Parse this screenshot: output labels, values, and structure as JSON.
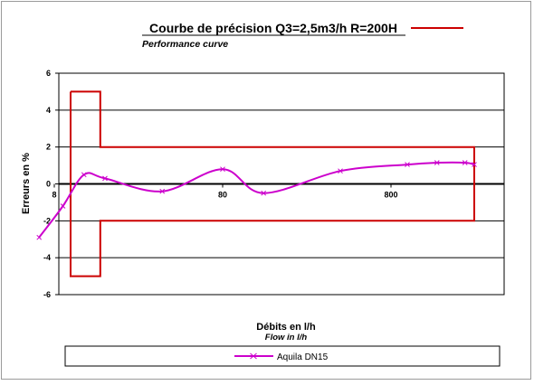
{
  "chart_data": {
    "type": "line",
    "title": "Courbe de précision Q3=2,5m3/h R=200H",
    "subtitle": "Performance curve",
    "xlabel": "Débits en l/h",
    "xlabel_sub": "Flow in l/h",
    "ylabel": "Erreurs en %",
    "x_scale": "log",
    "ylim": [
      -6,
      6
    ],
    "y_ticks": [
      "6",
      "4",
      "2",
      "0",
      "-2",
      "-4",
      "-6"
    ],
    "x_ticks": [
      {
        "value": 8,
        "label": "8"
      },
      {
        "value": 80,
        "label": "80"
      },
      {
        "value": 800,
        "label": "800"
      }
    ],
    "grid": "horizontal",
    "legend_position": "bottom",
    "tolerance_envelope": {
      "name": "",
      "color": "#cc0000",
      "points": [
        [
          10,
          5
        ],
        [
          15,
          5
        ],
        [
          15,
          2
        ],
        [
          2500,
          2
        ],
        [
          2500,
          -2
        ],
        [
          15,
          -2
        ],
        [
          15,
          -5
        ],
        [
          10,
          -5
        ],
        [
          10,
          5
        ]
      ]
    },
    "series": [
      {
        "name": "Aquila DN15",
        "color": "#cc00cc",
        "points": [
          [
            6.5,
            -2.9
          ],
          [
            9,
            -1.2
          ],
          [
            12,
            0.5
          ],
          [
            16,
            0.3
          ],
          [
            35,
            -0.4
          ],
          [
            80,
            0.8
          ],
          [
            140,
            -0.5
          ],
          [
            400,
            0.7
          ],
          [
            1000,
            1.05
          ],
          [
            1500,
            1.15
          ],
          [
            2200,
            1.15
          ],
          [
            2500,
            1.05
          ]
        ]
      }
    ]
  }
}
